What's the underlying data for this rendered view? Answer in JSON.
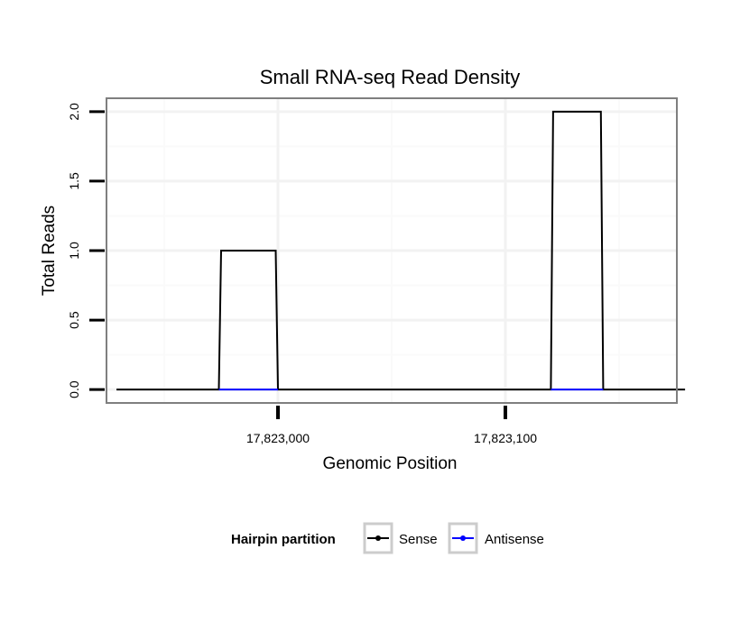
{
  "chart_data": {
    "type": "line",
    "title": "Small RNA-seq Read Density",
    "xlabel": "Genomic Position",
    "ylabel": "Total Reads",
    "xlim": [
      17822925,
      17823175
    ],
    "ylim": [
      -0.09,
      2.09
    ],
    "x_ticks": [
      17823000,
      17823100
    ],
    "x_tick_labels": [
      "17,823,000",
      "17,823,100"
    ],
    "y_ticks": [
      0.0,
      0.5,
      1.0,
      1.5,
      2.0
    ],
    "y_tick_labels": [
      "0.0",
      "0.5",
      "1.0",
      "1.5",
      "2.0"
    ],
    "x_minor_ticks": [
      17822950,
      17823050,
      17823150
    ],
    "grid": true,
    "legend": {
      "title": "Hairpin partition",
      "position": "bottom",
      "entries": [
        "Sense",
        "Antisense"
      ]
    },
    "series": [
      {
        "name": "Sense",
        "color": "#000000",
        "x": [
          17822929,
          17822974,
          17822975,
          17822999,
          17823000,
          17823120,
          17823121,
          17823142,
          17823143,
          17823179
        ],
        "y": [
          0,
          0,
          1,
          1,
          0,
          0,
          2,
          2,
          0,
          0
        ]
      },
      {
        "name": "Antisense",
        "color": "#0000ff",
        "x": [
          17822974,
          17823000
        ],
        "y": [
          0,
          0
        ]
      },
      {
        "name": "Antisense",
        "color": "#0000ff",
        "x": [
          17823120,
          17823143
        ],
        "y": [
          0,
          0
        ]
      }
    ]
  }
}
